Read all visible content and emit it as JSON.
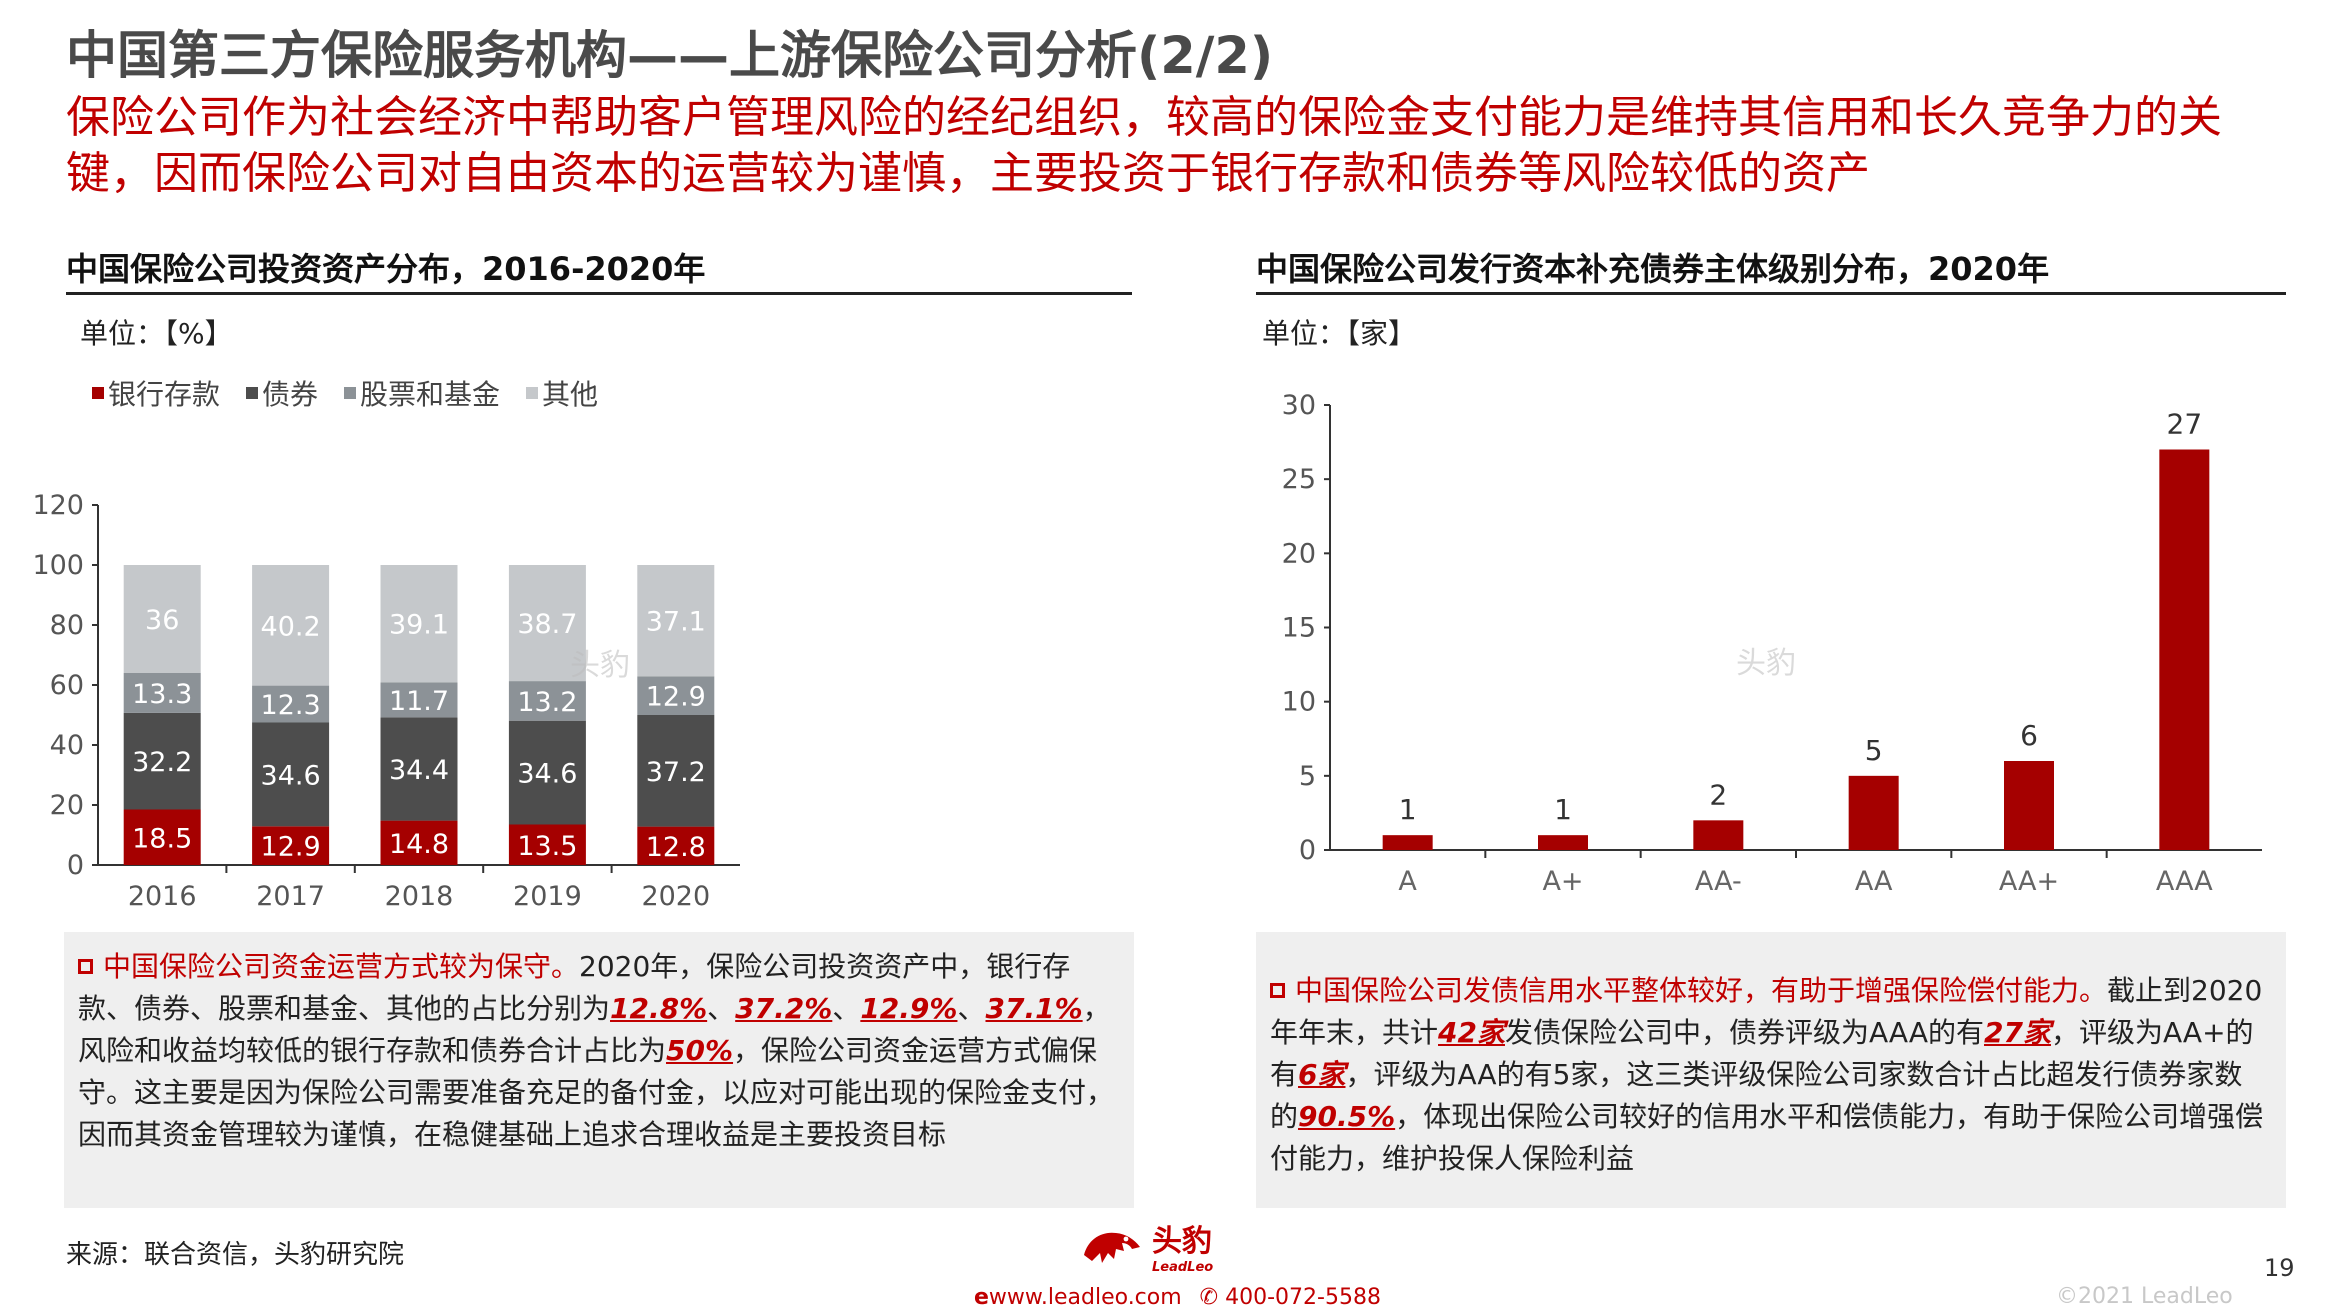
{
  "header": {
    "title": "中国第三方保险服务机构——上游保险公司分析(2/2)",
    "subtitle": "保险公司作为社会经济中帮助客户管理风险的经纪组织，较高的保险金支付能力是维持其信用和长久竞争力的关键，因而保险公司对自由资本的运营较为谨慎，主要投资于银行存款和债券等风险较低的资产"
  },
  "left_section": {
    "title": "中国保险公司投资资产分布，2016-2020年",
    "unit": "单位：【%】",
    "watermark": "头豹",
    "note": {
      "lead": "中国保险公司资金运营方式较为保守。",
      "t1": "2020年，保险公司投资资产中，银行存款、债券、股票和基金、其他的占比分别为",
      "v1": "12.8%",
      "s1": "、",
      "v2": "37.2%",
      "s2": "、",
      "v3": "12.9%",
      "s3": "、",
      "v4": "37.1%",
      "t2": "，风险和收益均较低的银行存款和债券合计占比为",
      "v5": "50%",
      "t3": "，保险公司资金运营方式偏保守。这主要是因为保险公司需要准备充足的备付金，以应对可能出现的保险金支付，因而其资金管理较为谨慎，在稳健基础上追求合理收益是主要投资目标"
    }
  },
  "right_section": {
    "title": "中国保险公司发行资本补充债券主体级别分布，2020年",
    "unit": "单位：【家】",
    "watermark": "头豹",
    "note": {
      "lead": "中国保险公司发债信用水平整体较好，有助于增强保险偿付能力。",
      "t1": "截止到2020年年末，共计",
      "v1": "42家",
      "t2": "发债保险公司中，债券评级为AAA的有",
      "v2": "27家",
      "t3": "，评级为AA+的有",
      "v3": "6家",
      "t4": "，评级为AA的有5家，这三类评级保险公司家数合计占比超发行债券家数的",
      "v4": "90.5%",
      "t5": "，体现出保险公司较好的信用水平和偿债能力，有助于保险公司增强偿付能力，维护投保人保险利益"
    }
  },
  "chart_data": [
    {
      "type": "bar",
      "stacked": true,
      "categories": [
        "2016",
        "2017",
        "2018",
        "2019",
        "2020"
      ],
      "series": [
        {
          "name": "银行存款",
          "color": "#a50000",
          "label_color": "#ffffff",
          "values": [
            18.5,
            12.9,
            14.8,
            13.5,
            12.8
          ]
        },
        {
          "name": "债券",
          "color": "#4d4d4d",
          "label_color": "#ffffff",
          "values": [
            32.2,
            34.6,
            34.4,
            34.6,
            37.2
          ]
        },
        {
          "name": "股票和基金",
          "color": "#8c9297",
          "label_color": "#ffffff",
          "values": [
            13.3,
            12.3,
            11.7,
            13.2,
            12.9
          ]
        },
        {
          "name": "其他",
          "color": "#c5c8cb",
          "label_color": "#ffffff",
          "values": [
            36,
            40.2,
            39.1,
            38.7,
            37.1
          ]
        }
      ],
      "ylim": [
        0,
        120
      ],
      "yticks": [
        "0",
        "20",
        "40",
        "60",
        "80",
        "100",
        "120"
      ],
      "legend": "top-left",
      "grid": false
    },
    {
      "type": "bar",
      "categories": [
        "A",
        "A+",
        "AA-",
        "AA",
        "AA+",
        "AAA"
      ],
      "values": [
        1,
        1,
        2,
        5,
        6,
        27
      ],
      "color": "#a50000",
      "ylim": [
        0,
        30
      ],
      "yticks": [
        "0",
        "5",
        "10",
        "15",
        "20",
        "25",
        "30"
      ],
      "grid": false
    }
  ],
  "footer": {
    "source": "来源：联合资信，头豹研究院",
    "logo_text": "头豹",
    "logo_sub": "LeadLeo",
    "website": "www.leadleo.com",
    "phone": "400-072-5588",
    "copyright": "©2021 LeadLeo",
    "page_number": "19"
  },
  "colors": {
    "accent_red": "#c00000",
    "bar_red": "#a50000",
    "note_bg": "#efefef"
  }
}
